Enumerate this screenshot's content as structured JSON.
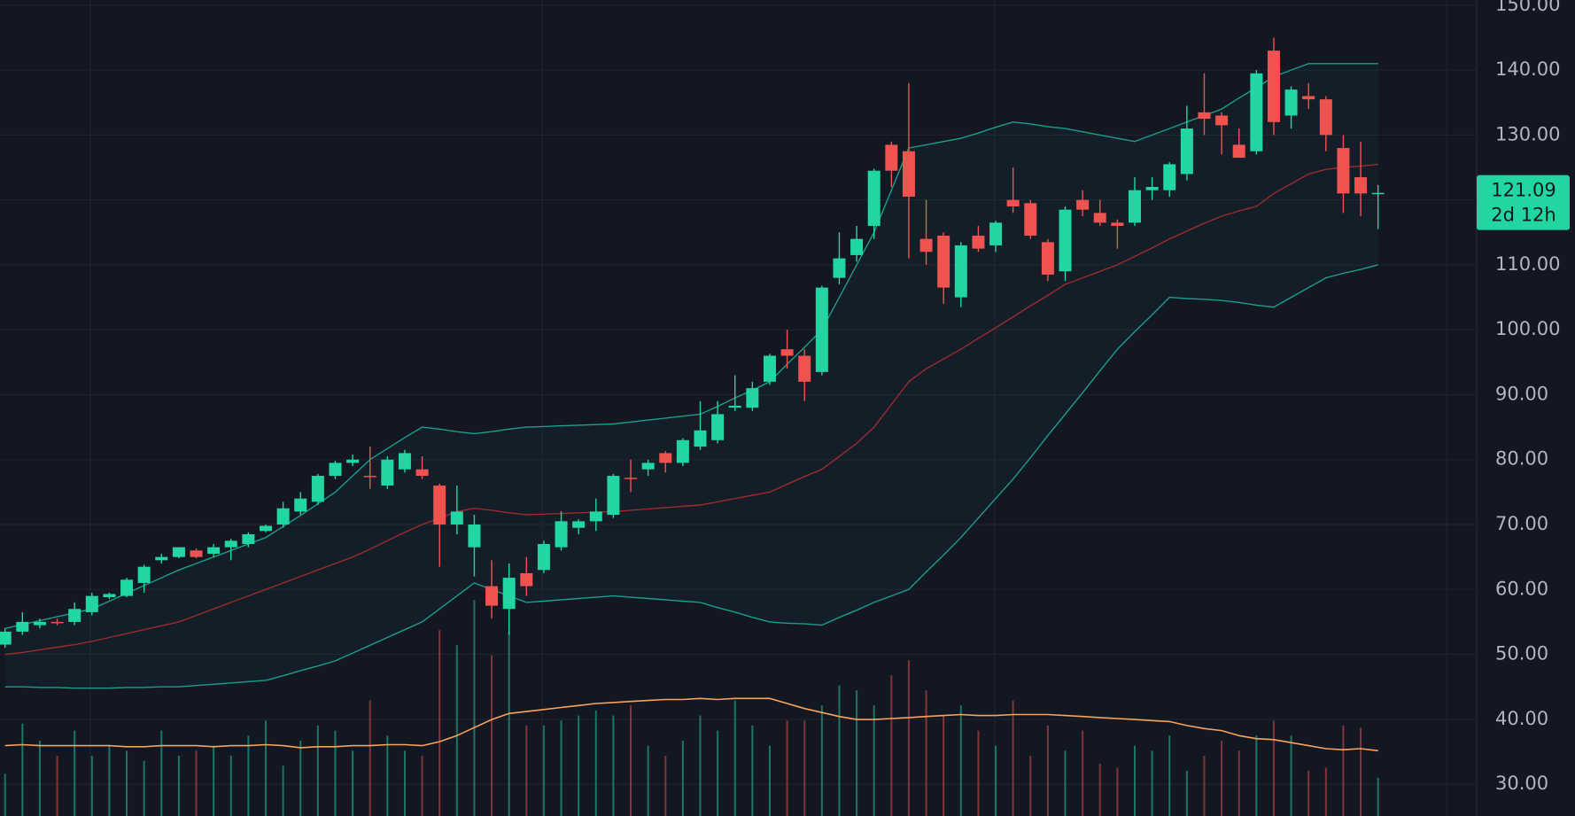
{
  "chart_data": {
    "type": "candlestick",
    "up_color": "#22d6a3",
    "down_color": "#ef5350",
    "ylim": [
      25.1,
      150.8
    ],
    "yticks": [
      {
        "value": 30,
        "label": "30.00"
      },
      {
        "value": 40,
        "label": "40.00"
      },
      {
        "value": 50,
        "label": "50.00"
      },
      {
        "value": 60,
        "label": "60.00"
      },
      {
        "value": 70,
        "label": "70.00"
      },
      {
        "value": 80,
        "label": "80.00"
      },
      {
        "value": 90,
        "label": "90.00"
      },
      {
        "value": 100,
        "label": "100.00"
      },
      {
        "value": 110,
        "label": "110.00"
      },
      {
        "value": 120,
        "label": "120.00"
      },
      {
        "value": 130,
        "label": "130.00"
      },
      {
        "value": 140,
        "label": "140.00"
      },
      {
        "value": 150,
        "label": "150.00"
      }
    ],
    "grid": true,
    "last_price": 121.09,
    "countdown": "2d 12h",
    "open": [
      51.5,
      53.5,
      54.5,
      55,
      55,
      56.5,
      58.8,
      59,
      61,
      64.5,
      65,
      66,
      65.5,
      66.5,
      67,
      69,
      70,
      72,
      73.5,
      77.5,
      79.5,
      77.5,
      76,
      78.5,
      78.5,
      76,
      70,
      66.5,
      60.5,
      57,
      62.5,
      63,
      66.5,
      69.5,
      70.5,
      71.5,
      77.2,
      78.5,
      81,
      79.5,
      82,
      83,
      88,
      88,
      92,
      97,
      96,
      93.5,
      108,
      111.5,
      116,
      128.5,
      127.5,
      114,
      114.5,
      105,
      114.5,
      113,
      120,
      119.5,
      113.5,
      109,
      120,
      118,
      116.5,
      116.5,
      121.5,
      121.5,
      124,
      133.5,
      133,
      128.5,
      127.5,
      143,
      133,
      136,
      135.5,
      128,
      123.5,
      121
    ],
    "high": [
      54,
      56.5,
      55.5,
      55.5,
      58,
      59.5,
      59.5,
      61.8,
      63.8,
      65.5,
      66.5,
      66.3,
      67,
      67.8,
      68.8,
      70,
      73.5,
      75,
      77.8,
      79.8,
      80.8,
      82,
      80.5,
      81.5,
      80.5,
      76.3,
      76,
      71.5,
      64.5,
      64,
      65,
      67.5,
      72,
      70.8,
      74,
      77.8,
      80,
      80,
      81.3,
      83.3,
      89,
      89,
      93,
      92,
      96.3,
      100,
      97,
      106.8,
      115,
      116,
      124.8,
      129,
      138,
      120,
      115,
      113.5,
      116,
      116.8,
      125,
      120,
      114,
      119,
      121.5,
      120,
      117,
      123.5,
      123.5,
      125.8,
      134.5,
      139.5,
      133.5,
      131,
      140,
      145,
      137.5,
      138,
      136,
      130,
      129,
      122.3
    ],
    "low": [
      51,
      53,
      54,
      54.5,
      54.5,
      56,
      58.5,
      58.8,
      59.5,
      64,
      64.8,
      64.8,
      65,
      64.5,
      66.5,
      68.8,
      69.5,
      71.5,
      73,
      77,
      79,
      75.5,
      75.5,
      78,
      77,
      63.5,
      68.5,
      62,
      55.5,
      53,
      59,
      62.5,
      66,
      68.5,
      69,
      71,
      75,
      77.5,
      78,
      79,
      81.5,
      82.5,
      87.5,
      87.5,
      91.5,
      94,
      89,
      93,
      107,
      110.5,
      114,
      122,
      111,
      110,
      104,
      103.5,
      112,
      112,
      118,
      114,
      107.5,
      107.5,
      117.5,
      116,
      112.5,
      116,
      120,
      120.5,
      123,
      130,
      127,
      126.5,
      127,
      130,
      131,
      134,
      127.5,
      118,
      117.5,
      115.5
    ],
    "close": [
      53.5,
      55,
      55,
      54.8,
      57,
      59,
      59.3,
      61.5,
      63.5,
      65,
      66.5,
      65,
      66.5,
      67.5,
      68.5,
      69.8,
      72.5,
      74,
      77.5,
      79.5,
      80,
      77.4,
      80,
      81,
      77.5,
      70,
      72,
      70,
      57.5,
      61.8,
      60.5,
      67,
      70.5,
      70.5,
      72,
      77.5,
      77,
      79.5,
      79.5,
      83,
      84.5,
      87,
      88.3,
      91,
      96,
      96,
      92,
      106.5,
      111,
      114,
      124.5,
      124.5,
      120.5,
      112,
      106.5,
      113,
      112.5,
      116.5,
      119,
      114.5,
      108.5,
      118.5,
      118.5,
      116.5,
      116,
      121.5,
      122,
      125.5,
      131,
      132.5,
      131.5,
      126.5,
      139.5,
      132,
      137,
      135.5,
      130,
      121,
      121,
      121.09
    ],
    "bollinger": {
      "band_color": "#1b9e8a",
      "middle_color": "#9b2c2c",
      "upper": [
        54,
        54.6,
        55.2,
        55.8,
        56.4,
        57,
        58.2,
        59.4,
        60.6,
        61.8,
        63,
        64,
        65,
        66,
        67,
        68,
        69.7,
        71.4,
        73.2,
        75,
        77.5,
        80,
        81.7,
        83.4,
        85,
        84.7,
        84.3,
        84,
        84.3,
        84.7,
        85,
        85.1,
        85.2,
        85.3,
        85.4,
        85.5,
        85.8,
        86.1,
        86.4,
        86.7,
        87,
        88.2,
        89.5,
        90.7,
        92,
        94.7,
        97.3,
        100,
        105,
        110,
        115,
        121.5,
        128,
        128.5,
        129,
        129.5,
        130.3,
        131.2,
        132,
        131.7,
        131.3,
        131,
        130.5,
        130,
        129.5,
        129,
        130,
        131,
        132,
        133,
        134,
        135.7,
        137.3,
        139,
        140,
        141,
        141,
        141,
        141,
        141
      ],
      "middle": [
        50,
        50.3,
        50.7,
        51.1,
        51.5,
        52,
        52.6,
        53.2,
        53.8,
        54.4,
        55,
        56,
        57,
        58,
        59,
        60,
        61,
        62,
        63,
        64,
        65,
        66.2,
        67.5,
        68.8,
        70,
        71,
        72,
        72.5,
        72.2,
        71.8,
        71.5,
        71.6,
        71.7,
        71.8,
        71.9,
        72,
        72.2,
        72.4,
        72.6,
        72.8,
        73,
        73.5,
        74,
        74.5,
        75,
        76.2,
        77.4,
        78.5,
        80.5,
        82.5,
        85,
        88.5,
        92,
        94,
        95.5,
        97,
        98.7,
        100.3,
        102,
        103.7,
        105.3,
        107,
        108,
        109,
        110,
        111.3,
        112.6,
        114,
        115.2,
        116.4,
        117.5,
        118.3,
        119,
        121,
        122.5,
        124,
        124.7,
        125,
        125.2,
        125.5
      ],
      "lower": [
        45,
        45,
        44.9,
        44.9,
        44.8,
        44.8,
        44.8,
        44.9,
        44.9,
        45,
        45,
        45.2,
        45.4,
        45.6,
        45.8,
        46,
        46.7,
        47.5,
        48.2,
        49,
        50.2,
        51.4,
        52.6,
        53.8,
        55,
        57,
        59,
        61,
        60,
        59,
        58,
        58.2,
        58.4,
        58.6,
        58.8,
        59,
        58.8,
        58.6,
        58.4,
        58.2,
        58,
        57.2,
        56.5,
        55.7,
        55,
        54.8,
        54.7,
        54.5,
        55.7,
        56.8,
        58,
        59,
        60,
        62.7,
        65.3,
        68,
        71,
        74,
        77,
        80.3,
        83.7,
        87,
        90.3,
        93.7,
        97,
        99.7,
        102.3,
        105,
        104.8,
        104.7,
        104.5,
        104.2,
        103.8,
        103.5,
        105,
        106.5,
        108,
        108.7,
        109.3,
        110
      ]
    },
    "volume": {
      "ma_color": "#f7a35c",
      "values": [
        42,
        92,
        75,
        60,
        85,
        60,
        70,
        65,
        55,
        85,
        60,
        65,
        70,
        60,
        80,
        95,
        50,
        75,
        90,
        85,
        65,
        115,
        80,
        65,
        60,
        185,
        170,
        215,
        160,
        185,
        90,
        90,
        95,
        100,
        105,
        100,
        110,
        70,
        60,
        75,
        100,
        85,
        115,
        90,
        70,
        95,
        95,
        110,
        130,
        125,
        110,
        140,
        155,
        125,
        100,
        110,
        85,
        70,
        115,
        60,
        90,
        65,
        85,
        52,
        48,
        70,
        65,
        80,
        45,
        60,
        75,
        65,
        80,
        95,
        80,
        45,
        48,
        90,
        88,
        38
      ],
      "ma": [
        70,
        71,
        70,
        70,
        70,
        70,
        70,
        69,
        69,
        70,
        70,
        70,
        69,
        70,
        70,
        71,
        70,
        68,
        69,
        69,
        70,
        70,
        71,
        71,
        70,
        74,
        80,
        88,
        96,
        102,
        104,
        106,
        108,
        110,
        112,
        113,
        114,
        115,
        116,
        116,
        117,
        116,
        117,
        117,
        117,
        112,
        107,
        103,
        99,
        96,
        96,
        97,
        98,
        99,
        100,
        101,
        100,
        100,
        101,
        101,
        101,
        100,
        99,
        98,
        97,
        96,
        95,
        94,
        90,
        87,
        85,
        80,
        77,
        76,
        73,
        70,
        67,
        66,
        67,
        65
      ]
    }
  }
}
